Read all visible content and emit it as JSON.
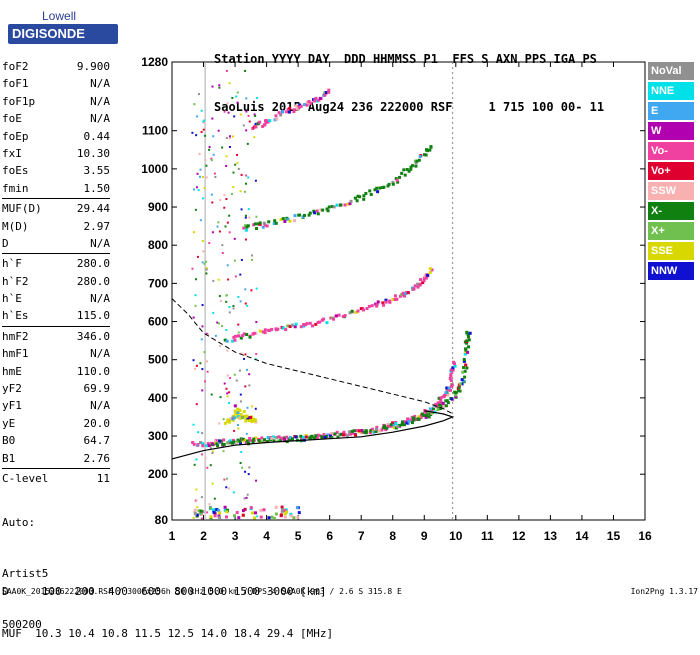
{
  "logo": {
    "line1": "Lowell",
    "line2": "DIGISONDE"
  },
  "header": {
    "line1": "Station YYYY DAY  DDD HHMMSS P1  FFS S AXN PPS IGA PS",
    "line2": "SaoLuis 2015 Aug24 236 222000 RSF     1 715 100 00- 11"
  },
  "params": [
    {
      "label": "foF2",
      "value": "9.900"
    },
    {
      "label": "foF1",
      "value": "N/A"
    },
    {
      "label": "foF1p",
      "value": "N/A"
    },
    {
      "label": "foE",
      "value": "N/A"
    },
    {
      "label": "foEp",
      "value": "0.44"
    },
    {
      "label": "fxI",
      "value": "10.30"
    },
    {
      "label": "foEs",
      "value": "3.55"
    },
    {
      "label": "fmin",
      "value": "1.50"
    },
    {
      "label": "MUF(D)",
      "value": "29.44"
    },
    {
      "label": "M(D)",
      "value": "2.97"
    },
    {
      "label": "D",
      "value": "N/A"
    },
    {
      "label": "h`F",
      "value": "280.0"
    },
    {
      "label": "h`F2",
      "value": "280.0"
    },
    {
      "label": "h`E",
      "value": "N/A"
    },
    {
      "label": "h`Es",
      "value": "115.0"
    },
    {
      "label": "hmF2",
      "value": "346.0"
    },
    {
      "label": "hmF1",
      "value": "N/A"
    },
    {
      "label": "hmE",
      "value": "110.0"
    },
    {
      "label": "yF2",
      "value": "69.9"
    },
    {
      "label": "yF1",
      "value": "N/A"
    },
    {
      "label": "yE",
      "value": "20.0"
    },
    {
      "label": "B0",
      "value": "64.7"
    },
    {
      "label": "B1",
      "value": "2.76"
    },
    {
      "label": "C-level",
      "value": "11"
    }
  ],
  "auto": {
    "line1": "Auto:",
    "line2": "Artist5",
    "line3": "500200"
  },
  "legend": [
    {
      "label": "NoVal",
      "color": "#909090"
    },
    {
      "label": "NNE",
      "color": "#00e0e8"
    },
    {
      "label": "E",
      "color": "#40a8f0"
    },
    {
      "label": "W",
      "color": "#b000b0"
    },
    {
      "label": "Vo-",
      "color": "#f040a0"
    },
    {
      "label": "Vo+",
      "color": "#e00030"
    },
    {
      "label": "SSW",
      "color": "#f8b0b0"
    },
    {
      "label": "X-",
      "color": "#108010"
    },
    {
      "label": "X+",
      "color": "#70c050"
    },
    {
      "label": "SSE",
      "color": "#d8d800"
    },
    {
      "label": "NNW",
      "color": "#1010d0"
    }
  ],
  "muf_table": {
    "d_line": "D     100  200  400  600  800 1000 1500 3000 [km]",
    "muf_line": "MUF  10.3 10.4 10.8 11.5 12.5 14.0 18.4 29.4 [MHz]"
  },
  "footer": {
    "left": "SAA0K_2015236222000.RSF / 300fx256h 50 kHz 5.0 km / DPS-4 SAA0K 903 / 2.6 S 315.8 E",
    "right": "Ion2Png 1.3.17"
  },
  "chart_data": {
    "type": "scatter",
    "title": "",
    "xlabel": "",
    "ylabel": "",
    "xlim": [
      1,
      16
    ],
    "ylim": [
      80,
      1280
    ],
    "xticks": [
      1,
      2,
      3,
      4,
      5,
      6,
      7,
      8,
      9,
      10,
      11,
      12,
      13,
      14,
      15,
      16
    ],
    "yticks": [
      80,
      200,
      300,
      400,
      500,
      600,
      700,
      800,
      900,
      1000,
      1100,
      1280
    ],
    "foF2_marker": 9.9,
    "fmin_marker": 1.5,
    "traces": [
      {
        "name": "O-trace F2",
        "color": "#f040a0",
        "points": [
          [
            1.6,
            282
          ],
          [
            2.5,
            287
          ],
          [
            3.5,
            292
          ],
          [
            4.5,
            296
          ],
          [
            5.5,
            301
          ],
          [
            6.5,
            310
          ],
          [
            7.5,
            322
          ],
          [
            8.2,
            336
          ],
          [
            8.8,
            354
          ],
          [
            9.2,
            375
          ],
          [
            9.6,
            405
          ],
          [
            9.8,
            440
          ],
          [
            9.9,
            500
          ]
        ]
      },
      {
        "name": "X-trace F2",
        "color": "#108010",
        "points": [
          [
            2.2,
            284
          ],
          [
            3.0,
            288
          ],
          [
            4.0,
            292
          ],
          [
            5.0,
            297
          ],
          [
            6.0,
            304
          ],
          [
            7.0,
            315
          ],
          [
            8.0,
            330
          ],
          [
            8.8,
            350
          ],
          [
            9.4,
            374
          ],
          [
            9.9,
            405
          ],
          [
            10.2,
            450
          ],
          [
            10.3,
            530
          ],
          [
            10.35,
            580
          ]
        ]
      },
      {
        "name": "2-hop F2",
        "color": "#f040a0",
        "points": [
          [
            2.7,
            555
          ],
          [
            3.5,
            570
          ],
          [
            4.5,
            586
          ],
          [
            5.5,
            600
          ],
          [
            6.5,
            620
          ],
          [
            7.5,
            648
          ],
          [
            8.2,
            670
          ],
          [
            8.8,
            700
          ],
          [
            9.2,
            740
          ]
        ]
      },
      {
        "name": "3-hop F2",
        "color": "#108010",
        "points": [
          [
            3.2,
            848
          ],
          [
            4.0,
            860
          ],
          [
            5.0,
            878
          ],
          [
            6.0,
            900
          ],
          [
            7.0,
            930
          ],
          [
            8.0,
            970
          ],
          [
            8.7,
            1020
          ],
          [
            9.2,
            1070
          ]
        ]
      },
      {
        "name": "4-hop F2",
        "color": "#f040a0",
        "points": [
          [
            3.5,
            1110
          ],
          [
            4.0,
            1130
          ],
          [
            4.8,
            1160
          ],
          [
            5.5,
            1185
          ],
          [
            6.0,
            1210
          ]
        ]
      },
      {
        "name": "Es layer",
        "color": "#d8d800",
        "points": [
          [
            2.7,
            340
          ],
          [
            3.0,
            360
          ],
          [
            3.3,
            350
          ],
          [
            3.6,
            345
          ],
          [
            2.9,
            380
          ]
        ]
      }
    ],
    "profile": {
      "color": "#000",
      "points": [
        [
          1.0,
          240
        ],
        [
          2.0,
          262
        ],
        [
          3.0,
          276
        ],
        [
          4.0,
          283
        ],
        [
          5.0,
          288
        ],
        [
          6.0,
          293
        ],
        [
          7.0,
          298
        ],
        [
          8.0,
          310
        ],
        [
          9.0,
          326
        ],
        [
          9.6,
          340
        ],
        [
          9.9,
          350
        ],
        [
          9.6,
          358
        ],
        [
          9.0,
          366
        ]
      ]
    },
    "model_curve": {
      "color": "#000",
      "points": [
        [
          1.0,
          660
        ],
        [
          1.5,
          620
        ],
        [
          2.0,
          570
        ],
        [
          3.0,
          520
        ],
        [
          4.0,
          490
        ],
        [
          5.0,
          470
        ],
        [
          6.0,
          450
        ],
        [
          7.0,
          430
        ],
        [
          8.0,
          410
        ],
        [
          9.0,
          390
        ],
        [
          9.6,
          372
        ],
        [
          9.9,
          358
        ]
      ]
    }
  }
}
